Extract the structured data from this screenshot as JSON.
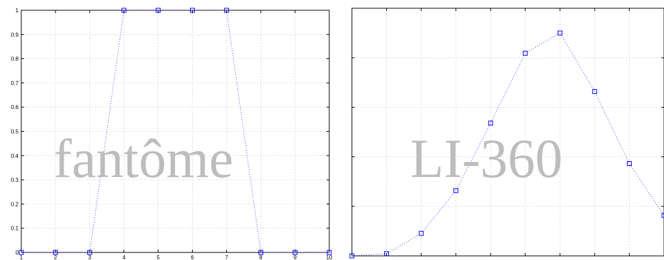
{
  "watermarks": {
    "left": "fantôme",
    "right": "LI-360"
  },
  "chart_data": [
    {
      "type": "line",
      "x": [
        1,
        2,
        3,
        4,
        5,
        6,
        7,
        8,
        9,
        10
      ],
      "series": [
        {
          "values": [
            0,
            0,
            0,
            1,
            1,
            1,
            1,
            0,
            0,
            0
          ],
          "color": "#0000ff",
          "marker": "square",
          "linestyle": "dotted"
        }
      ],
      "xlim": [
        1,
        10
      ],
      "ylim": [
        0,
        1
      ],
      "xticks": [
        "1",
        "2",
        "3",
        "4",
        "5",
        "6",
        "7",
        "8",
        "9",
        "10"
      ],
      "yticks": [
        "0",
        "0.1",
        "0.2",
        "0.3",
        "0.4",
        "0.5",
        "0.6",
        "0.7",
        "0.8",
        "0.9",
        "1"
      ],
      "grid": true,
      "title": "",
      "xlabel": "",
      "ylabel": ""
    },
    {
      "type": "line",
      "x": [
        1,
        2,
        3,
        4,
        5,
        6,
        7,
        8,
        9,
        10
      ],
      "series": [
        {
          "values": [
            0,
            0.01,
            0.1,
            0.29,
            0.59,
            0.9,
            0.99,
            0.73,
            0.41,
            0.18
          ],
          "color": "#0000ff",
          "marker": "square",
          "linestyle": "dotted"
        }
      ],
      "xlim": [
        1,
        10
      ],
      "ylim": [
        0,
        1.1
      ],
      "yticks_count": 6,
      "grid": true,
      "ticklabels_shown": false,
      "title": "",
      "xlabel": "",
      "ylabel": ""
    }
  ]
}
